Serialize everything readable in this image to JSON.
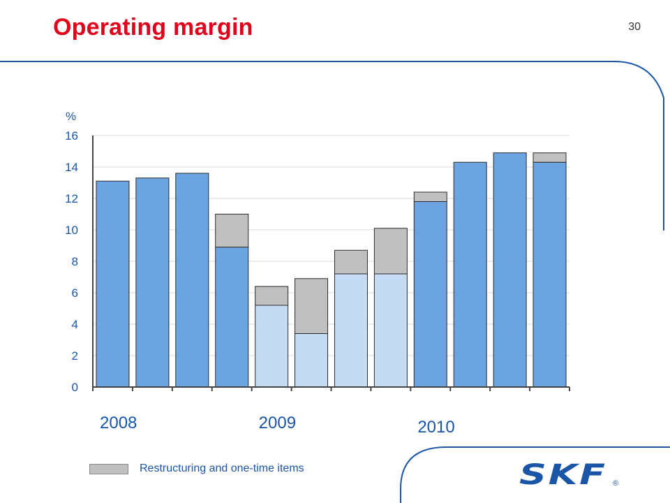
{
  "header": {
    "title": "Operating margin",
    "page_number": "30"
  },
  "colors": {
    "title": "#e2001a",
    "accent_blue": "#1a55a8",
    "bar_dark": "#6ba4e0",
    "bar_light": "#c5daf3",
    "bar_restructuring": "#c0c0c0",
    "frame_line": "#1a55a8"
  },
  "chart_data": {
    "type": "bar",
    "stacked": true,
    "ylabel": "%",
    "ylim": [
      0,
      16
    ],
    "yticks": [
      "0",
      "2",
      "4",
      "6",
      "8",
      "10",
      "12",
      "14",
      "16"
    ],
    "grid": true,
    "year_groups": [
      {
        "label": "2008",
        "quarters": [
          1,
          2,
          3,
          4
        ]
      },
      {
        "label": "2009",
        "quarters": [
          5,
          6,
          7,
          8
        ]
      },
      {
        "label": "2010",
        "quarters": [
          9,
          10,
          11,
          12
        ]
      }
    ],
    "series": [
      {
        "name": "",
        "values": [
          13.1,
          13.3,
          13.6,
          8.9,
          5.2,
          3.4,
          7.2,
          7.2,
          11.8,
          14.3,
          14.9,
          14.3
        ],
        "shade": [
          "dark",
          "dark",
          "dark",
          "dark",
          "light",
          "light",
          "light",
          "light",
          "dark",
          "dark",
          "dark",
          "dark"
        ]
      },
      {
        "name": "Restructuring and one-time items",
        "values": [
          0,
          0,
          0,
          2.1,
          1.2,
          3.5,
          1.5,
          2.9,
          0.6,
          0,
          0,
          0.6
        ]
      }
    ],
    "legend": {
      "placement": "bottom",
      "label": "Restructuring and one-time items"
    }
  },
  "logo": {
    "text": "SKF",
    "mark": "®"
  }
}
